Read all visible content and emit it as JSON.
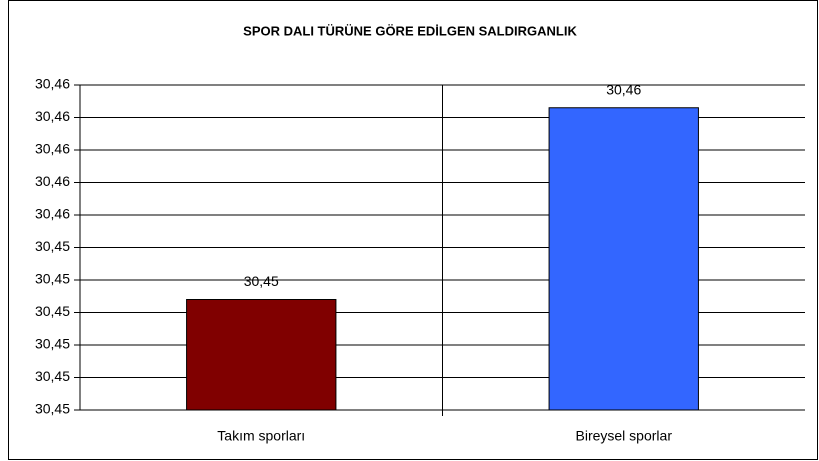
{
  "chart_data": {
    "type": "bar",
    "title": "SPOR DALI TÜRÜNE GÖRE EDİLGEN SALDIRGANLIK",
    "categories": [
      "Takım sporları",
      "Bireysel sporlar"
    ],
    "series": [
      {
        "name": "Edilgen saldırganlık",
        "values": [
          30.4524,
          30.4583
        ],
        "value_labels": [
          "30,45",
          "30,46"
        ],
        "colors": [
          "#800000",
          "#3366ff"
        ]
      }
    ],
    "ylim": [
      30.449,
      30.459
    ],
    "yticks": [
      {
        "value": 30.449,
        "label": "30,45"
      },
      {
        "value": 30.45,
        "label": "30,45"
      },
      {
        "value": 30.451,
        "label": "30,45"
      },
      {
        "value": 30.452,
        "label": "30,45"
      },
      {
        "value": 30.453,
        "label": "30,45"
      },
      {
        "value": 30.454,
        "label": "30,45"
      },
      {
        "value": 30.455,
        "label": "30,46"
      },
      {
        "value": 30.456,
        "label": "30,46"
      },
      {
        "value": 30.457,
        "label": "30,46"
      },
      {
        "value": 30.458,
        "label": "30,46"
      },
      {
        "value": 30.459,
        "label": "30,46"
      }
    ],
    "grid": true
  }
}
